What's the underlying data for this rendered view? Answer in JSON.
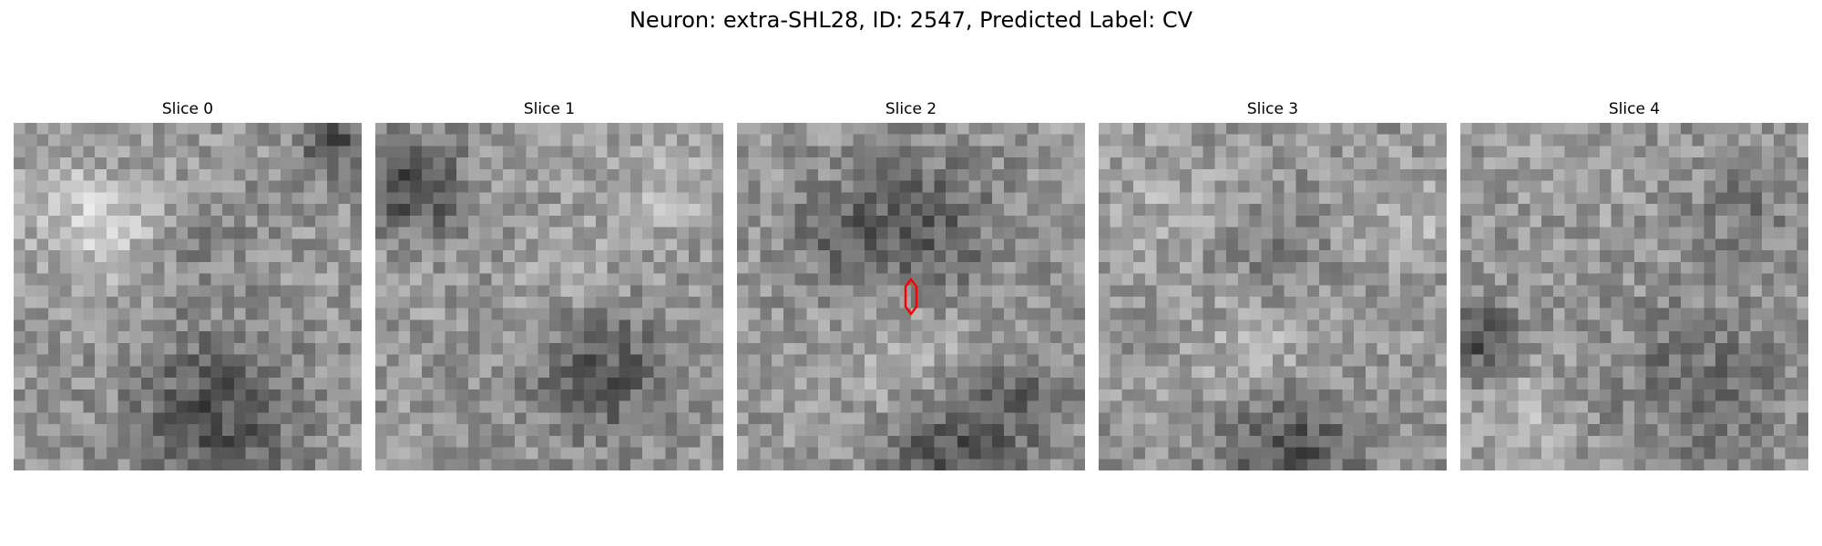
{
  "title": "Neuron: extra-SHL28, ID: 2547, Predicted Label: CV",
  "panels": [
    {
      "label": "Slice 0"
    },
    {
      "label": "Slice 1"
    },
    {
      "label": "Slice 2",
      "marker": "red-hexagon"
    },
    {
      "label": "Slice 3"
    },
    {
      "label": "Slice 4"
    }
  ],
  "colors": {
    "marker": "#ff0000",
    "colormap": "grayscale"
  }
}
